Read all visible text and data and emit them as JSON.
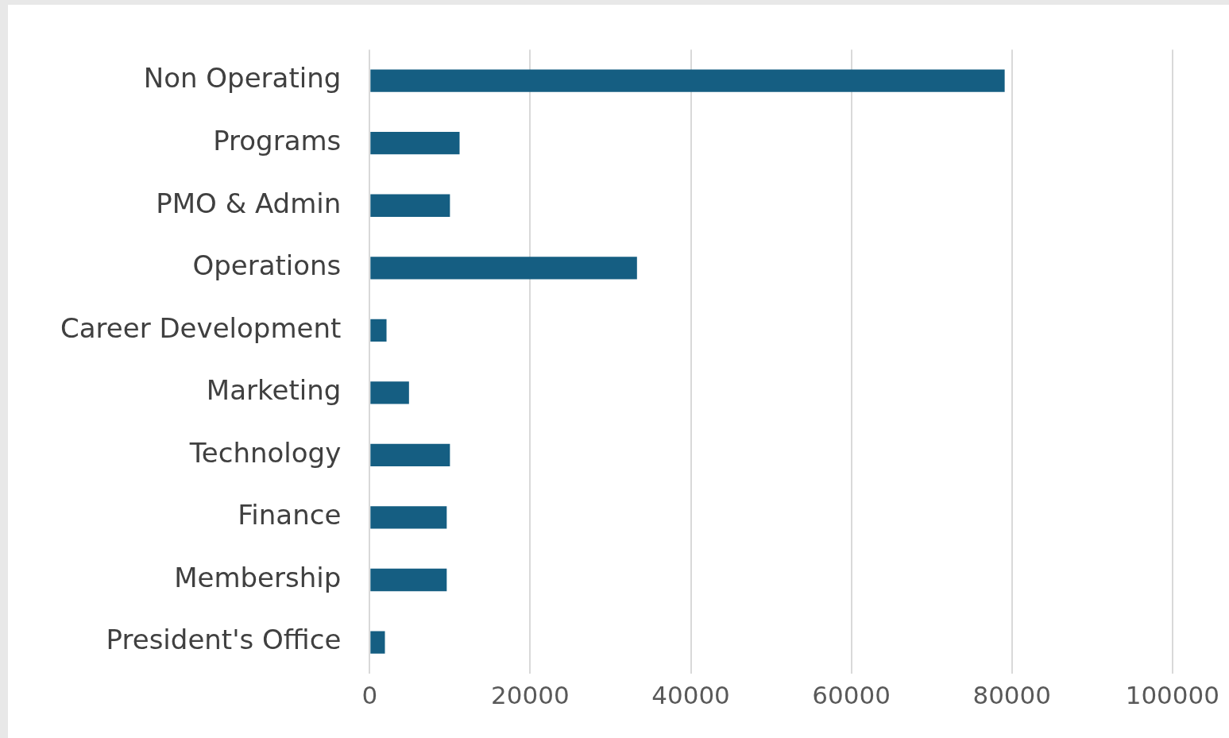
{
  "chart_data": {
    "type": "bar",
    "orientation": "horizontal",
    "categories": [
      "Non Operating",
      "Programs",
      "PMO & Admin",
      "Operations",
      "Career Development",
      "Marketing",
      "Technology",
      "Finance",
      "Membership",
      "President's Office"
    ],
    "values": [
      79100,
      11200,
      10000,
      33300,
      2100,
      4900,
      10000,
      9600,
      9600,
      1900
    ],
    "color": "#155e82",
    "xlim": [
      0,
      100000
    ],
    "xticks": [
      0,
      20000,
      40000,
      60000,
      80000,
      100000
    ],
    "grid": "x",
    "legend": false
  }
}
